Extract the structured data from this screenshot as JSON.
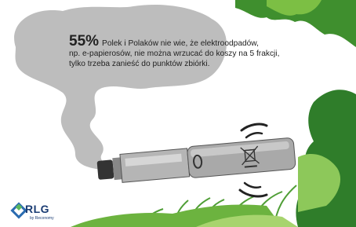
{
  "headline": {
    "stat": "55%",
    "lines": [
      "Polek i Polaków nie wie, że elektroodpadów,",
      "np. e-papierosów, nie można wrzucać do koszy na 5 frakcji,",
      "tylko trzeba zanieść do punktów zbiórki."
    ]
  },
  "logo": {
    "name": "RLG",
    "tagline": "by Reconomy"
  }
}
